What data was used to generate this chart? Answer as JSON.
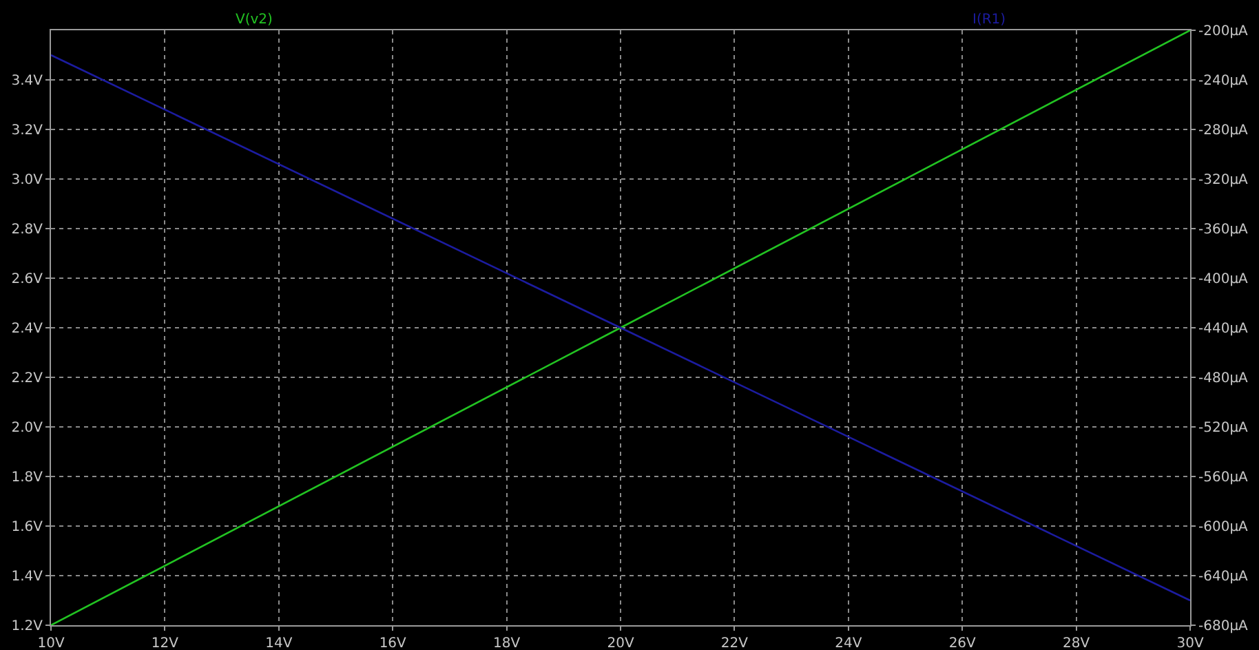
{
  "chart_data": {
    "type": "line",
    "x": [
      10,
      20,
      30
    ],
    "series": [
      {
        "name": "V(v2)",
        "color": "#22c322",
        "values": [
          1.2,
          2.4,
          3.6
        ]
      },
      {
        "name": "I(R1)",
        "color": "#1c1ca0",
        "values": [
          -220,
          -440,
          -660
        ],
        "axis": "y2"
      }
    ],
    "xlim": [
      10,
      30
    ],
    "xticks": [
      {
        "value": 10,
        "label": "10V"
      },
      {
        "value": 12,
        "label": "12V"
      },
      {
        "value": 14,
        "label": "14V"
      },
      {
        "value": 16,
        "label": "16V"
      },
      {
        "value": 18,
        "label": "18V"
      },
      {
        "value": 20,
        "label": "20V"
      },
      {
        "value": 22,
        "label": "22V"
      },
      {
        "value": 24,
        "label": "24V"
      },
      {
        "value": 26,
        "label": "26V"
      },
      {
        "value": 28,
        "label": "28V"
      },
      {
        "value": 30,
        "label": "30V"
      }
    ],
    "ylim": [
      1.2,
      3.6
    ],
    "yticks": [
      {
        "value": 1.2,
        "label": "1.2V"
      },
      {
        "value": 1.4,
        "label": "1.4V"
      },
      {
        "value": 1.6,
        "label": "1.6V"
      },
      {
        "value": 1.8,
        "label": "1.8V"
      },
      {
        "value": 2.0,
        "label": "2.0V"
      },
      {
        "value": 2.2,
        "label": "2.2V"
      },
      {
        "value": 2.4,
        "label": "2.4V"
      },
      {
        "value": 2.6,
        "label": "2.6V"
      },
      {
        "value": 2.8,
        "label": "2.8V"
      },
      {
        "value": 3.0,
        "label": "3.0V"
      },
      {
        "value": 3.2,
        "label": "3.2V"
      },
      {
        "value": 3.4,
        "label": "3.4V"
      }
    ],
    "y2lim": [
      -680,
      -200
    ],
    "y2ticks": [
      {
        "value": -200,
        "label": "-200µA"
      },
      {
        "value": -240,
        "label": "-240µA"
      },
      {
        "value": -280,
        "label": "-280µA"
      },
      {
        "value": -320,
        "label": "-320µA"
      },
      {
        "value": -360,
        "label": "-360µA"
      },
      {
        "value": -400,
        "label": "-400µA"
      },
      {
        "value": -440,
        "label": "-440µA"
      },
      {
        "value": -480,
        "label": "-480µA"
      },
      {
        "value": -520,
        "label": "-520µA"
      },
      {
        "value": -560,
        "label": "-560µA"
      },
      {
        "value": -600,
        "label": "-600µA"
      },
      {
        "value": -640,
        "label": "-640µA"
      },
      {
        "value": -680,
        "label": "-680µA"
      }
    ],
    "grid": true,
    "legend": false,
    "marker": "none",
    "line_style": "solid"
  }
}
